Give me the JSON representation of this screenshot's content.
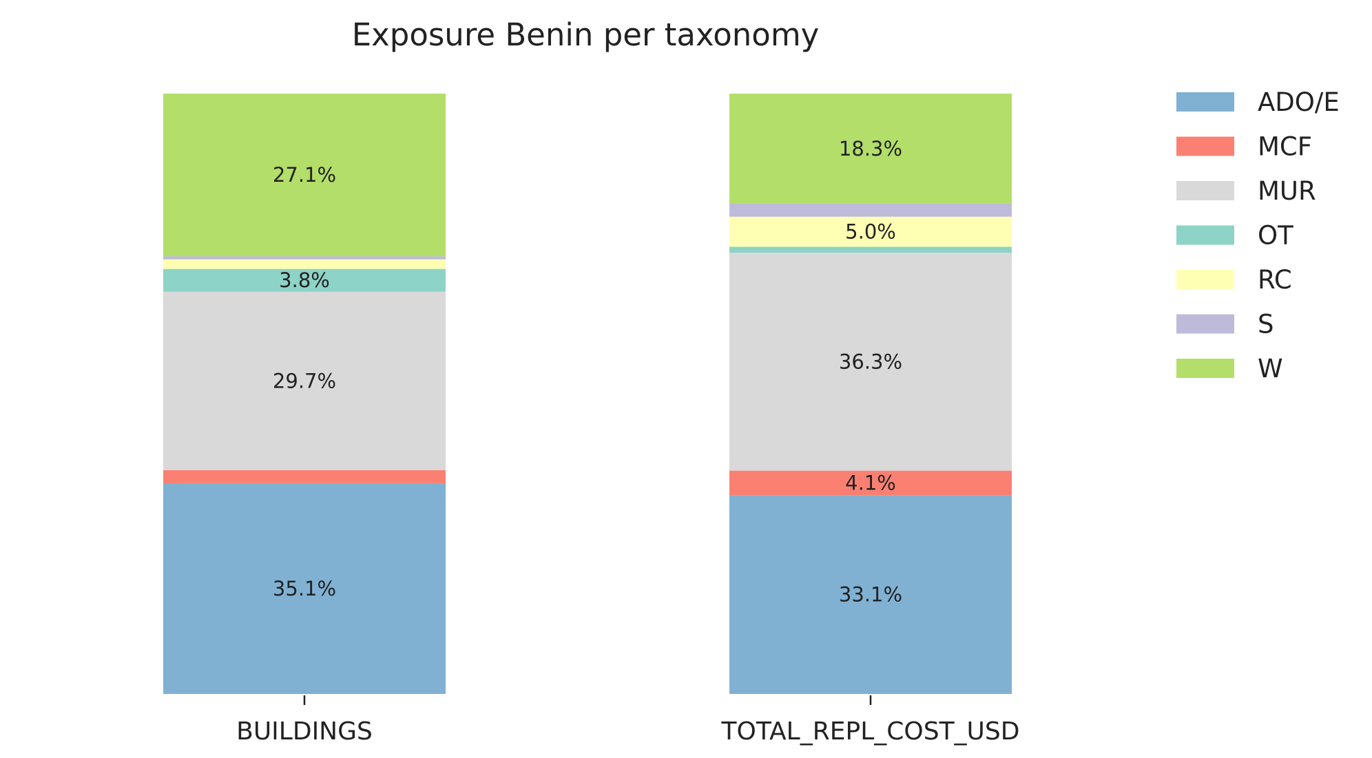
{
  "chart_data": {
    "type": "bar",
    "stacked": true,
    "normalized": true,
    "title": "Exposure Benin per taxonomy",
    "xlabel": "",
    "ylabel": "",
    "ylim": [
      0,
      100
    ],
    "categories": [
      "BUILDINGS",
      "TOTAL_REPL_COST_USD"
    ],
    "series": [
      {
        "name": "ADO/E",
        "color": "#80b1d3",
        "values": [
          35.1,
          33.1
        ]
      },
      {
        "name": "MCF",
        "color": "#fb8072",
        "values": [
          2.2,
          4.1
        ]
      },
      {
        "name": "MUR",
        "color": "#d9d9d9",
        "values": [
          29.7,
          36.3
        ]
      },
      {
        "name": "OT",
        "color": "#8dd3c7",
        "values": [
          3.8,
          1.0
        ]
      },
      {
        "name": "RC",
        "color": "#ffffb3",
        "values": [
          1.6,
          5.0
        ]
      },
      {
        "name": "S",
        "color": "#bebada",
        "values": [
          0.5,
          2.2
        ]
      },
      {
        "name": "W",
        "color": "#b3de69",
        "values": [
          27.1,
          18.3
        ]
      }
    ],
    "data_labels": [
      [
        "35.1%",
        "33.1%"
      ],
      [
        "",
        "4.1%"
      ],
      [
        "29.7%",
        "36.3%"
      ],
      [
        "3.8%",
        ""
      ],
      [
        "",
        "5.0%"
      ],
      [
        "",
        ""
      ],
      [
        "27.1%",
        "18.3%"
      ]
    ],
    "legend": {
      "position": "right",
      "order": "top-to-bottom"
    },
    "grid": false
  }
}
